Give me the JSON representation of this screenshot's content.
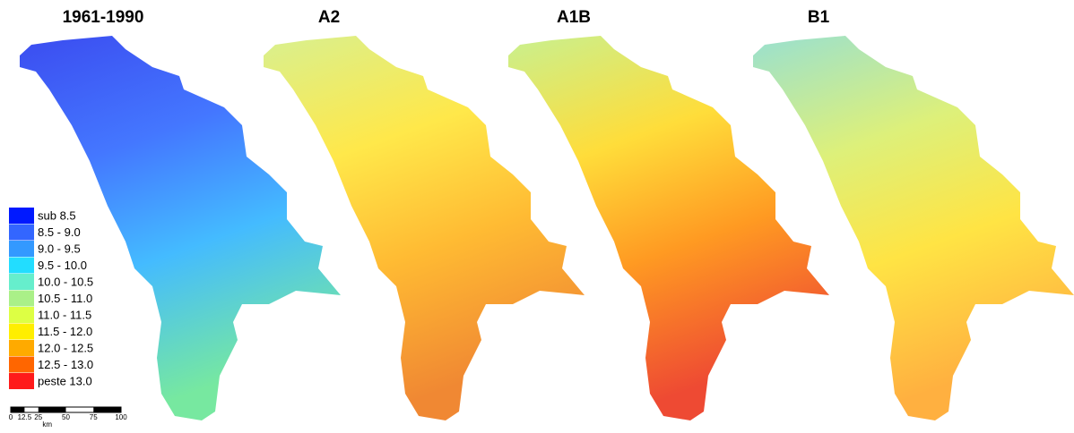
{
  "panels": [
    {
      "title": "1961-1990",
      "fill": "g0"
    },
    {
      "title": "A2",
      "fill": "g1"
    },
    {
      "title": "A1B",
      "fill": "g2"
    },
    {
      "title": "B1",
      "fill": "g3"
    }
  ],
  "legend": [
    {
      "label": "sub 8.5",
      "color": "#0019ff"
    },
    {
      "label": "8.5 - 9.0",
      "color": "#3366ff"
    },
    {
      "label": "9.0 - 9.5",
      "color": "#3399ff"
    },
    {
      "label": "9.5 - 10.0",
      "color": "#22ddff"
    },
    {
      "label": "10.0 - 10.5",
      "color": "#66eecc"
    },
    {
      "label": "10.5 - 11.0",
      "color": "#aaf088"
    },
    {
      "label": "11.0 - 11.5",
      "color": "#ddff44"
    },
    {
      "label": "11.5 - 12.0",
      "color": "#ffee00"
    },
    {
      "label": "12.0 - 12.5",
      "color": "#ffaa00"
    },
    {
      "label": "12.5 - 13.0",
      "color": "#ff6600"
    },
    {
      "label": "peste 13.0",
      "color": "#ff1a1a"
    }
  ],
  "scale_bar": {
    "ticks": [
      0,
      12.5,
      25,
      50,
      75,
      100
    ],
    "unit": "km"
  }
}
